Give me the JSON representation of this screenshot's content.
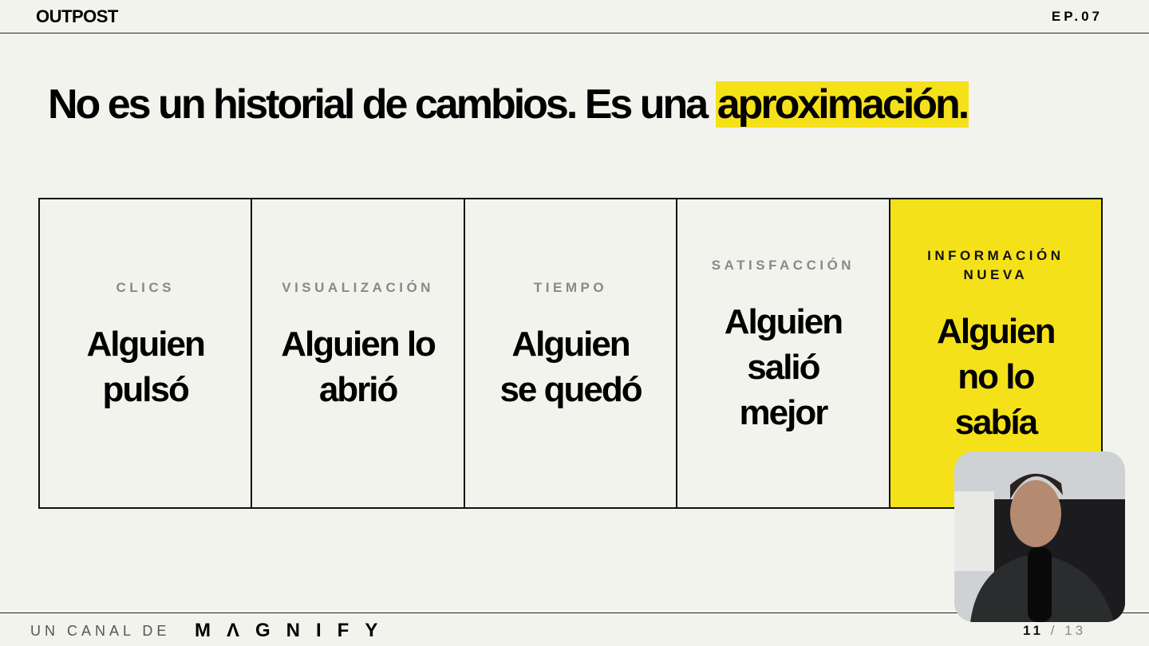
{
  "header": {
    "logo": "OUTPOST",
    "episode": "EP.07"
  },
  "title": {
    "text": "No es un historial de cambios. Es una",
    "highlight": "aproximación."
  },
  "cards": [
    {
      "label": "CLICS",
      "lines": [
        "Alguien",
        "pulsó"
      ]
    },
    {
      "label": "VISUALIZACIÓN",
      "lines": [
        "Alguien lo",
        "abrió"
      ]
    },
    {
      "label": "TIEMPO",
      "lines": [
        "Alguien",
        "se quedó"
      ]
    },
    {
      "label": "SATISFACCIÓN",
      "lines": [
        "Alguien",
        "salió",
        "mejor"
      ]
    },
    {
      "label": "INFORMACIÓN NUEVA",
      "lines": [
        "Alguien",
        "no lo",
        "sabía"
      ],
      "highlighted": true
    }
  ],
  "footer": {
    "prefix": "UN CANAL DE",
    "brand": "MΛGNIFY",
    "page": {
      "current": "11",
      "separator": "/",
      "total": "13"
    }
  }
}
